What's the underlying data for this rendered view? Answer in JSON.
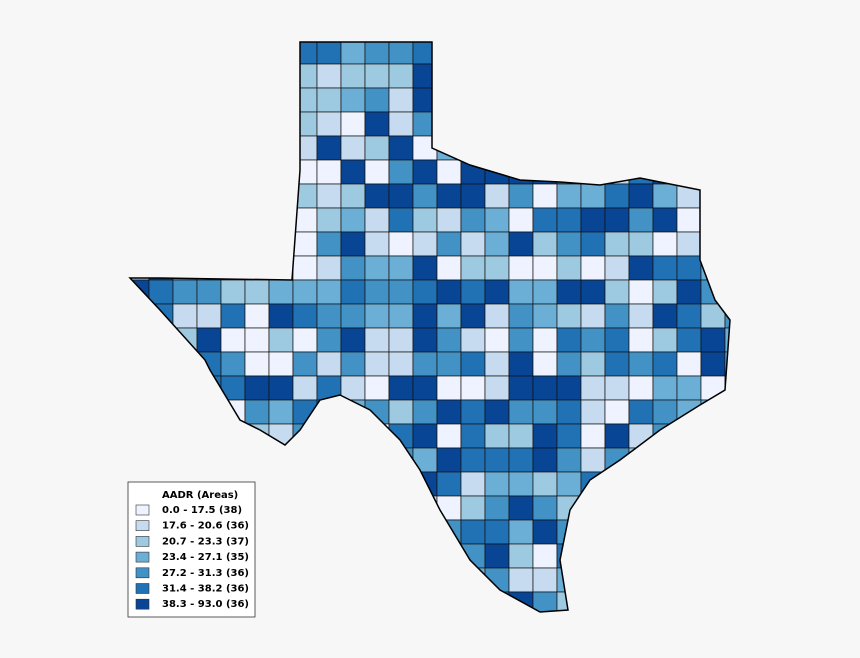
{
  "map": {
    "legend": {
      "title": "AADR (Areas)",
      "items": [
        {
          "label": "0.0 - 17.5 (38)",
          "color": "#eff3ff"
        },
        {
          "label": "17.6 - 20.6 (36)",
          "color": "#c6dbef"
        },
        {
          "label": "20.7 - 23.3 (37)",
          "color": "#9ecae1"
        },
        {
          "label": "23.4 - 27.1 (35)",
          "color": "#6baed6"
        },
        {
          "label": "27.2 - 31.3 (36)",
          "color": "#4292c6"
        },
        {
          "label": "31.4 - 38.2 (36)",
          "color": "#2171b5"
        },
        {
          "label": "38.3 - 93.0 (36)",
          "color": "#084594"
        }
      ]
    }
  }
}
